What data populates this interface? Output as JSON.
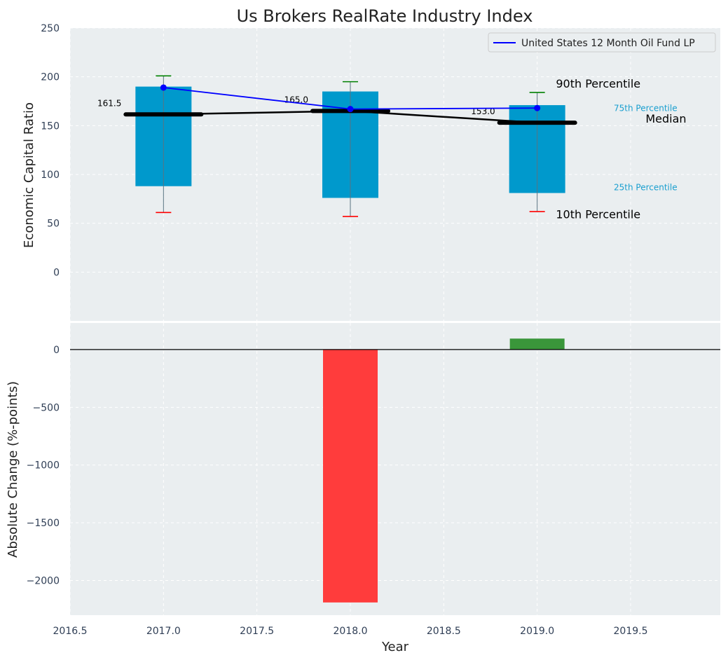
{
  "chart_data": {
    "title": "Us Brokers RealRate Industry Index",
    "xlabel": "Year",
    "xlim": [
      2016.5,
      2019.98
    ],
    "x_ticks": [
      2016.5,
      2017.0,
      2017.5,
      2018.0,
      2018.5,
      2019.0,
      2019.5
    ],
    "x_tick_labels": [
      "2016.5",
      "2017.0",
      "2017.5",
      "2018.0",
      "2018.5",
      "2019.0",
      "2019.5"
    ],
    "grid": true,
    "colors": {
      "plot_bg": "#eaeef0",
      "box": "#0099cc",
      "line": "#0000ff",
      "median": "#000000",
      "p90": "#008000",
      "p10": "#ff0000",
      "bar_negative": "#ff3c3c",
      "bar_positive": "#3a963a",
      "tick_text": "#2f3e55",
      "annotation_blue": "#1a9fcf"
    },
    "top": {
      "type": "box",
      "ylabel": "Economic Capital Ratio",
      "ylim": [
        -50,
        250
      ],
      "y_ticks": [
        0,
        50,
        100,
        150,
        200,
        250
      ],
      "y_tick_labels": [
        "0",
        "50",
        "100",
        "150",
        "200",
        "250"
      ],
      "years": [
        2017,
        2018,
        2019
      ],
      "p10": [
        61,
        57,
        62
      ],
      "p25": [
        88,
        76,
        81
      ],
      "median": [
        161.5,
        165.0,
        153.0
      ],
      "p75": [
        190,
        185,
        171
      ],
      "p90": [
        201,
        195,
        184
      ],
      "median_labels": [
        "161.5",
        "165.0",
        "153.0"
      ],
      "legend": {
        "position": "top-right",
        "entries": [
          "United States 12 Month Oil Fund LP"
        ]
      },
      "series": [
        {
          "name": "United States 12 Month Oil Fund LP",
          "x": [
            2017,
            2018,
            2019
          ],
          "values": [
            189,
            167,
            168
          ]
        }
      ],
      "annotations": {
        "p90": {
          "text": "90th Percentile",
          "x": 2019.1,
          "y": 189
        },
        "p75": {
          "text": "75th Percentile",
          "x": 2019.41,
          "y": 165
        },
        "median": {
          "text": "Median",
          "x": 2019.58,
          "y": 153
        },
        "p25": {
          "text": "25th Percentile",
          "x": 2019.41,
          "y": 84
        },
        "p10": {
          "text": "10th Percentile",
          "x": 2019.1,
          "y": 55
        }
      }
    },
    "bottom": {
      "type": "bar",
      "ylabel": "Absolute Change (%-points)",
      "ylim": [
        -2300,
        230
      ],
      "y_ticks": [
        0,
        -500,
        -1000,
        -1500,
        -2000
      ],
      "y_tick_labels": [
        "0",
        "−500",
        "−1000",
        "−1500",
        "−2000"
      ],
      "x": [
        2018,
        2019
      ],
      "values": [
        -2190,
        95
      ]
    }
  }
}
